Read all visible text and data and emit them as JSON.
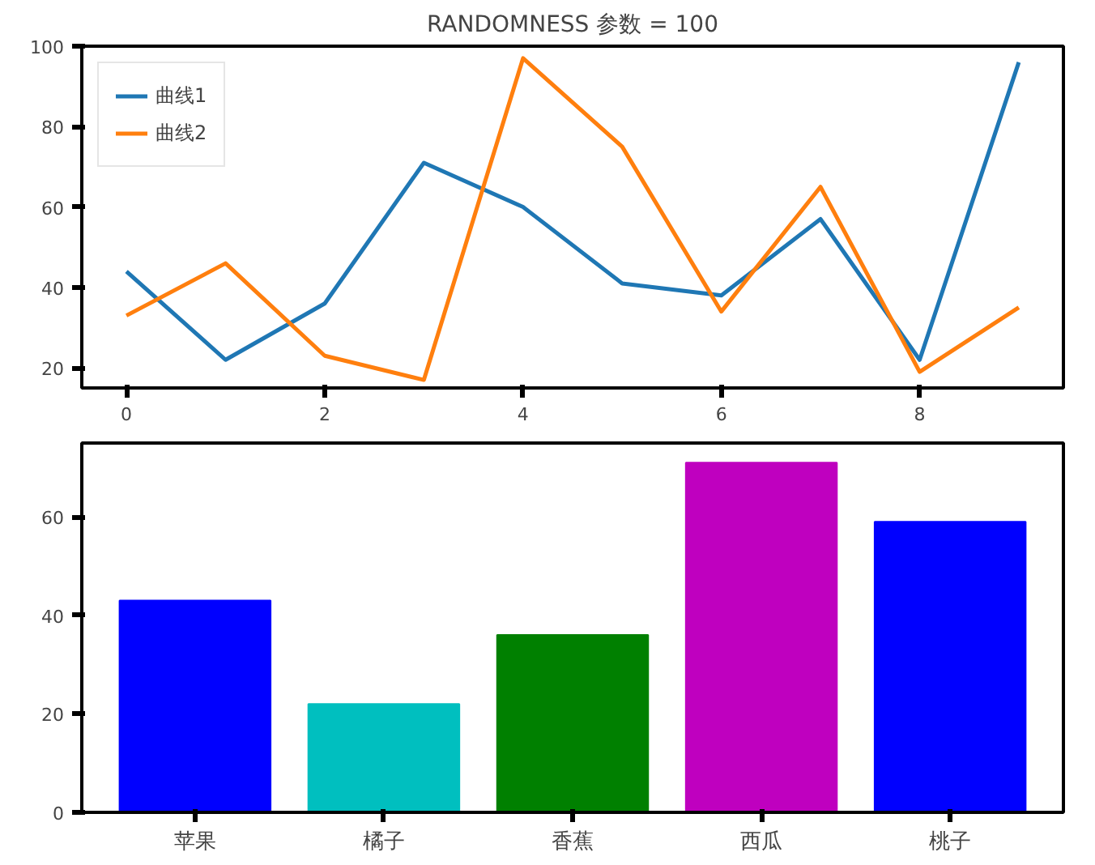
{
  "chart_data": [
    {
      "type": "line",
      "title": "RANDOMNESS 参数 = 100",
      "x": [
        0,
        1,
        2,
        3,
        4,
        5,
        6,
        7,
        8,
        9
      ],
      "series": [
        {
          "name": "曲线1",
          "color": "#1f77b4",
          "values": [
            44,
            22,
            36,
            71,
            60,
            41,
            38,
            57,
            22,
            96
          ]
        },
        {
          "name": "曲线2",
          "color": "#ff7f0e",
          "values": [
            33,
            46,
            23,
            17,
            97,
            75,
            34,
            65,
            19,
            35
          ]
        }
      ],
      "xlim": [
        -0.45,
        9.45
      ],
      "xticks": [
        0,
        2,
        4,
        6,
        8
      ],
      "ylim": [
        15,
        100
      ],
      "yticks": [
        20,
        40,
        60,
        80,
        100
      ],
      "legend": "top left",
      "grid": false
    },
    {
      "type": "bar",
      "categories": [
        "苹果",
        "橘子",
        "香蕉",
        "西瓜",
        "桃子"
      ],
      "values": [
        43,
        22,
        36,
        71,
        59
      ],
      "colors": [
        "#0000ff",
        "#00bfbf",
        "#008000",
        "#bf00bf",
        "#0000ff"
      ],
      "ylim": [
        0,
        75
      ],
      "yticks": [
        0,
        20,
        40,
        60
      ],
      "grid": false
    }
  ]
}
